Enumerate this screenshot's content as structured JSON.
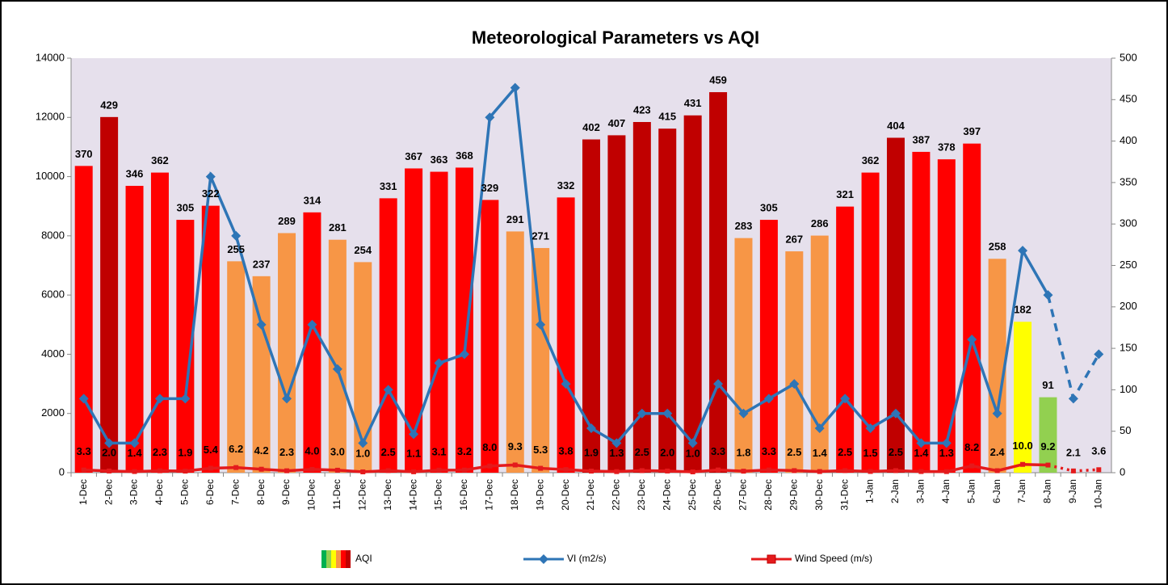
{
  "chart_data": {
    "type": "combo",
    "title": "Meteorological Parameters vs AQI",
    "categories": [
      "1-Dec",
      "2-Dec",
      "3-Dec",
      "4-Dec",
      "5-Dec",
      "6-Dec",
      "7-Dec",
      "8-Dec",
      "9-Dec",
      "10-Dec",
      "11-Dec",
      "12-Dec",
      "13-Dec",
      "14-Dec",
      "15-Dec",
      "16-Dec",
      "17-Dec",
      "18-Dec",
      "19-Dec",
      "20-Dec",
      "21-Dec",
      "22-Dec",
      "23-Dec",
      "24-Dec",
      "25-Dec",
      "26-Dec",
      "27-Dec",
      "28-Dec",
      "29-Dec",
      "30-Dec",
      "31-Dec",
      "1-Jan",
      "2-Jan",
      "3-Jan",
      "4-Jan",
      "5-Jan",
      "6-Jan",
      "7-Jan",
      "8-Jan",
      "9-Jan",
      "10-Jan"
    ],
    "ylim": [
      0,
      14000
    ],
    "yticks": [
      0,
      2000,
      4000,
      6000,
      8000,
      10000,
      12000,
      14000
    ],
    "y2lim": [
      0,
      500
    ],
    "y2ticks": [
      0,
      50,
      100,
      150,
      200,
      250,
      300,
      350,
      400,
      450,
      500
    ],
    "grid": false,
    "legend": "bottom",
    "background": "#e6e0ec",
    "series": [
      {
        "name": "AQI",
        "type": "bar",
        "axis": "y2",
        "legend_colors": [
          "#00b050",
          "#92d050",
          "#ffff00",
          "#f79646",
          "#ff0000",
          "#c00000"
        ],
        "values": [
          370,
          429,
          346,
          362,
          305,
          322,
          255,
          237,
          289,
          314,
          281,
          254,
          331,
          367,
          363,
          368,
          329,
          291,
          271,
          332,
          402,
          407,
          423,
          415,
          431,
          459,
          283,
          305,
          267,
          286,
          321,
          362,
          404,
          387,
          378,
          397,
          258,
          182,
          91,
          null,
          null
        ],
        "colors": [
          "#ff0000",
          "#c00000",
          "#ff0000",
          "#ff0000",
          "#ff0000",
          "#ff0000",
          "#f79646",
          "#f79646",
          "#f79646",
          "#ff0000",
          "#f79646",
          "#f79646",
          "#ff0000",
          "#ff0000",
          "#ff0000",
          "#ff0000",
          "#ff0000",
          "#f79646",
          "#f79646",
          "#ff0000",
          "#c00000",
          "#c00000",
          "#c00000",
          "#c00000",
          "#c00000",
          "#c00000",
          "#f79646",
          "#ff0000",
          "#f79646",
          "#f79646",
          "#ff0000",
          "#ff0000",
          "#c00000",
          "#ff0000",
          "#ff0000",
          "#ff0000",
          "#f79646",
          "#ffff00",
          "#92d050",
          null,
          null
        ]
      },
      {
        "name": "VI (m2/s)",
        "type": "line",
        "axis": "y",
        "color": "#2e75b6",
        "marker": "diamond",
        "dashed_segments": 2,
        "values": [
          2500,
          1000,
          1000,
          2500,
          2500,
          10000,
          8000,
          5000,
          2500,
          5000,
          3500,
          1000,
          2800,
          1300,
          3700,
          4000,
          12000,
          13000,
          5000,
          3000,
          1500,
          1000,
          2000,
          2000,
          1000,
          3000,
          2000,
          2500,
          3000,
          1500,
          2500,
          1500,
          2000,
          1000,
          1000,
          4500,
          2000,
          7500,
          6000,
          2500,
          4000
        ]
      },
      {
        "name": "Wind Speed (m/s)",
        "type": "line",
        "axis": "y2",
        "color": "#e41a1c",
        "marker": "square",
        "dashed_segments": 2,
        "values": [
          3.3,
          2.0,
          1.4,
          2.3,
          1.9,
          5.4,
          6.2,
          4.2,
          2.3,
          4.0,
          3.0,
          1.0,
          2.5,
          1.1,
          3.1,
          3.2,
          8.0,
          9.3,
          5.3,
          3.8,
          1.9,
          1.3,
          2.5,
          2.0,
          1.0,
          3.3,
          1.8,
          3.3,
          2.5,
          1.4,
          2.5,
          1.5,
          2.5,
          1.4,
          1.3,
          8.2,
          2.4,
          10.0,
          9.2,
          2.1,
          3.6
        ],
        "value_labels": [
          "3.3",
          "2.0",
          "1.4",
          "2.3",
          "1.9",
          "5.4",
          "6.2",
          "4.2",
          "2.3",
          "4.0",
          "3.0",
          "1.0",
          "2.5",
          "1.1",
          "3.1",
          "3.2",
          "8.0",
          "9.3",
          "5.3",
          "3.8",
          "1.9",
          "1.3",
          "2.5",
          "2.0",
          "1.0",
          "3.3",
          "1.8",
          "3.3",
          "2.5",
          "1.4",
          "2.5",
          "1.5",
          "2.5",
          "1.4",
          "1.3",
          "8.2",
          "2.4",
          "10.0",
          "9.2",
          "2.1",
          "3.6"
        ]
      }
    ]
  }
}
